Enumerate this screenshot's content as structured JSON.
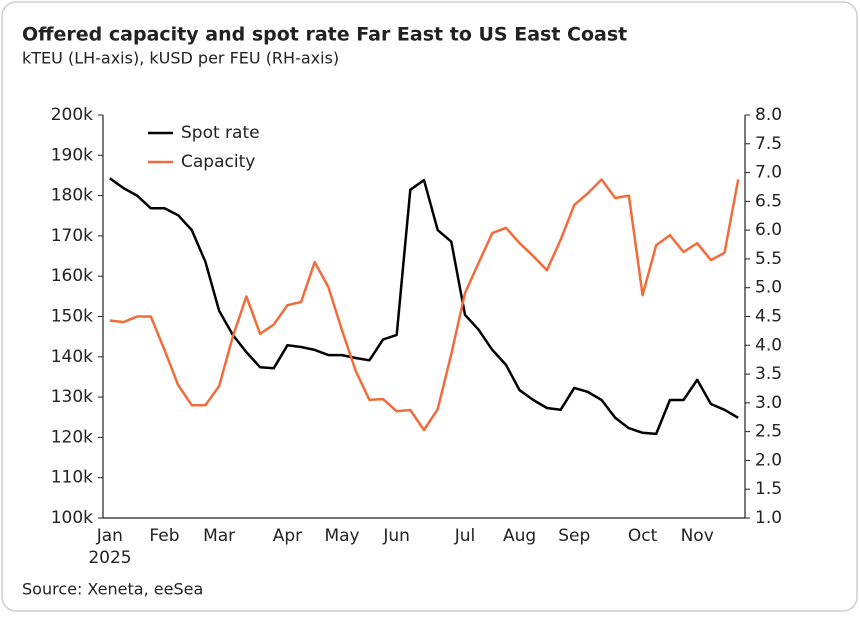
{
  "chart_data": {
    "type": "line",
    "title": "Offered capacity and spot rate Far East to US East Coast",
    "subtitle": "kTEU (LH-axis), kUSD per FEU (RH-axis)",
    "source": "Source: Xeneta, eeSea",
    "year_label": "2025",
    "categories": [
      "Jan",
      null,
      null,
      null,
      "Feb",
      null,
      null,
      null,
      "Mar",
      null,
      null,
      null,
      null,
      "Apr",
      null,
      null,
      null,
      "May",
      null,
      null,
      null,
      "Jun",
      null,
      null,
      null,
      null,
      "Jul",
      null,
      null,
      null,
      "Aug",
      null,
      null,
      null,
      "Sep",
      null,
      null,
      null,
      null,
      "Oct",
      null,
      null,
      null,
      "Nov",
      null,
      null,
      null
    ],
    "ylim": [
      100,
      200
    ],
    "yticks": [
      {
        "value": 100,
        "label": "100k"
      },
      {
        "value": 110,
        "label": "110k"
      },
      {
        "value": 120,
        "label": "120k"
      },
      {
        "value": 130,
        "label": "130k"
      },
      {
        "value": 140,
        "label": "140k"
      },
      {
        "value": 150,
        "label": "150k"
      },
      {
        "value": 160,
        "label": "160k"
      },
      {
        "value": 170,
        "label": "170k"
      },
      {
        "value": 180,
        "label": "180k"
      },
      {
        "value": 190,
        "label": "190k"
      },
      {
        "value": 200,
        "label": "200k"
      }
    ],
    "y2lim": [
      1,
      8
    ],
    "y2ticks": [
      {
        "value": 1,
        "label": "1.0"
      },
      1.5,
      {
        "value": 2,
        "label": "2.0"
      },
      2.5,
      {
        "value": 3,
        "label": "3.0"
      },
      3.5,
      {
        "value": 4,
        "label": "4.0"
      },
      4.5,
      {
        "value": 5,
        "label": "5.0"
      },
      5.5,
      {
        "value": 6,
        "label": "6.0"
      },
      6.5,
      {
        "value": 7,
        "label": "7.0"
      },
      7.5,
      {
        "value": 8,
        "label": "8.0"
      }
    ],
    "grid": false,
    "legend": "upper left",
    "series": [
      {
        "name": "Spot rate",
        "color": "#000000",
        "axis": "y2",
        "values": [
          6.9,
          6.73,
          6.6,
          6.38,
          6.38,
          6.26,
          6.0,
          5.45,
          4.6,
          4.18,
          3.88,
          3.62,
          3.6,
          4.0,
          3.97,
          3.92,
          3.83,
          3.83,
          3.78,
          3.74,
          4.1,
          4.18,
          6.7,
          6.87,
          6.0,
          5.8,
          4.53,
          4.27,
          3.92,
          3.66,
          3.22,
          3.05,
          2.91,
          2.88,
          3.26,
          3.19,
          3.05,
          2.74,
          2.56,
          2.48,
          2.46,
          3.05,
          3.05,
          3.4,
          2.98,
          2.88,
          2.74
        ]
      },
      {
        "name": "Capacity",
        "color": "#f26b3a",
        "values": [
          149,
          148.6,
          150,
          150,
          141.7,
          133,
          128,
          128,
          132.7,
          145,
          155,
          145.7,
          148,
          152.8,
          153.6,
          163.5,
          157.3,
          146.6,
          136.5,
          129.3,
          129.5,
          126.5,
          126.8,
          121.8,
          127,
          140.7,
          155.8,
          163.3,
          170.7,
          172,
          168.2,
          165,
          161.5,
          169,
          177.7,
          180.6,
          184,
          179.4,
          180,
          155.3,
          167.7,
          170.2,
          166,
          168.2,
          164,
          165.8,
          184
        ]
      }
    ]
  }
}
